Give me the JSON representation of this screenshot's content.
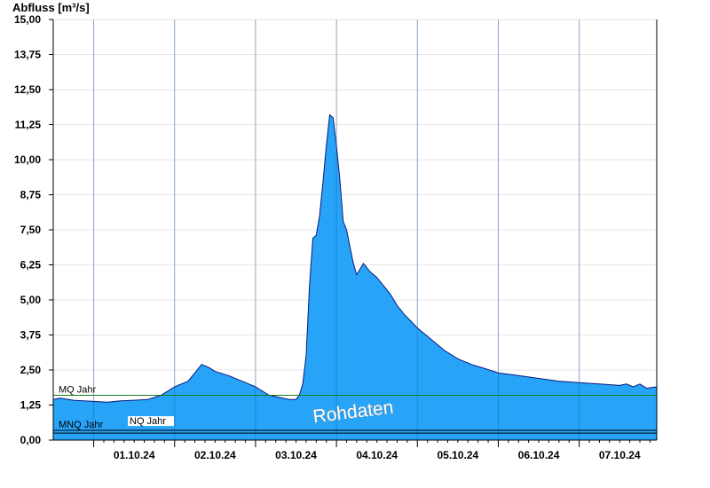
{
  "chart_data": {
    "type": "area",
    "ylabel": "Abfluss [m³/s]",
    "ylim": [
      0,
      15
    ],
    "yticks": [
      "0,00",
      "1,25",
      "2,50",
      "3,75",
      "5,00",
      "6,25",
      "7,50",
      "8,75",
      "10,00",
      "11,25",
      "12,50",
      "13,75",
      "15,00"
    ],
    "xlim": [
      "30.09.24 12:00",
      "07.10.24 23:00"
    ],
    "xtick_labels": [
      "01.10.24",
      "02.10.24",
      "03.10.24",
      "04.10.24",
      "05.10.24",
      "06.10.24",
      "07.10.24"
    ],
    "grid": true,
    "fill_color": "#27a4f8",
    "line_color": "#0a1a7a",
    "reference_lines": [
      {
        "name": "MQ Jahr",
        "value": 1.6,
        "color": "#1b7a1b"
      },
      {
        "name": "MNQ Jahr",
        "value": 0.35,
        "color": "#000000"
      },
      {
        "name": "NQ Jahr",
        "value": 0.25,
        "color": "#000000"
      }
    ],
    "watermark": "Rohdaten",
    "series": [
      {
        "x": [
          "30.09.24 12:00",
          "30.09.24 14:00",
          "30.09.24 18:00",
          "01.10.24 00:00",
          "01.10.24 04:00",
          "01.10.24 08:00",
          "01.10.24 12:00",
          "01.10.24 16:00",
          "01.10.24 20:00",
          "02.10.24 00:00",
          "02.10.24 04:00",
          "02.10.24 06:00",
          "02.10.24 08:00",
          "02.10.24 10:00",
          "02.10.24 12:00",
          "02.10.24 16:00",
          "02.10.24 20:00",
          "03.10.24 00:00",
          "03.10.24 04:00",
          "03.10.24 08:00",
          "03.10.24 10:00",
          "03.10.24 12:00",
          "03.10.24 13:00",
          "03.10.24 14:00",
          "03.10.24 15:00",
          "03.10.24 16:00",
          "03.10.24 17:00",
          "03.10.24 18:00",
          "03.10.24 19:00",
          "03.10.24 20:00",
          "03.10.24 21:00",
          "03.10.24 22:00",
          "03.10.24 23:00",
          "04.10.24 00:00",
          "04.10.24 01:00",
          "04.10.24 02:00",
          "04.10.24 03:00",
          "04.10.24 04:00",
          "04.10.24 05:00",
          "04.10.24 06:00",
          "04.10.24 08:00",
          "04.10.24 10:00",
          "04.10.24 12:00",
          "04.10.24 14:00",
          "04.10.24 16:00",
          "04.10.24 18:00",
          "04.10.24 20:00",
          "05.10.24 00:00",
          "05.10.24 04:00",
          "05.10.24 08:00",
          "05.10.24 12:00",
          "05.10.24 16:00",
          "05.10.24 20:00",
          "06.10.24 00:00",
          "06.10.24 06:00",
          "06.10.24 12:00",
          "06.10.24 18:00",
          "07.10.24 00:00",
          "07.10.24 06:00",
          "07.10.24 12:00",
          "07.10.24 14:00",
          "07.10.24 16:00",
          "07.10.24 18:00",
          "07.10.24 20:00",
          "07.10.24 23:00"
        ],
        "y": [
          1.45,
          1.5,
          1.42,
          1.38,
          1.35,
          1.4,
          1.42,
          1.45,
          1.6,
          1.9,
          2.1,
          2.4,
          2.7,
          2.6,
          2.45,
          2.3,
          2.1,
          1.9,
          1.6,
          1.5,
          1.45,
          1.45,
          1.6,
          2.0,
          3.0,
          5.5,
          7.2,
          7.3,
          8.0,
          9.2,
          10.5,
          11.6,
          11.5,
          10.5,
          9.3,
          7.8,
          7.5,
          6.9,
          6.3,
          5.9,
          6.3,
          6.0,
          5.8,
          5.5,
          5.2,
          4.8,
          4.5,
          4.0,
          3.6,
          3.2,
          2.9,
          2.7,
          2.55,
          2.4,
          2.3,
          2.2,
          2.1,
          2.05,
          2.0,
          1.95,
          2.0,
          1.9,
          2.0,
          1.85,
          1.9
        ]
      }
    ]
  }
}
